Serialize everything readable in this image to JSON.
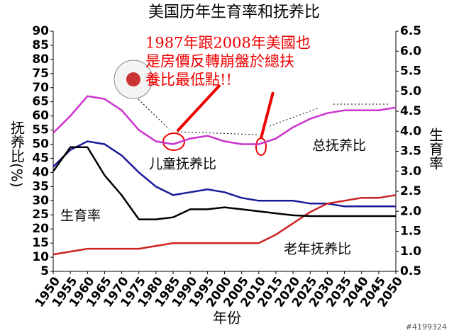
{
  "chart_data": {
    "type": "line",
    "title": "美国历年生育率和抚养比",
    "x_label": "年份",
    "y_label": "抚养比(%)",
    "y2_label": "生育率",
    "annotation": [
      "1987年跟2008年美國也",
      "是房價反轉崩盤於總扶",
      "養比最低點!!"
    ],
    "watermark": "#4199324",
    "x": [
      1950,
      1955,
      1960,
      1965,
      1970,
      1975,
      1980,
      1985,
      1990,
      1995,
      2000,
      2005,
      2010,
      2015,
      2020,
      2025,
      2030,
      2035,
      2040,
      2045,
      2050
    ],
    "xlim": [
      1950,
      2050
    ],
    "xticks": [
      1950,
      1955,
      1960,
      1965,
      1970,
      1975,
      1980,
      1985,
      1990,
      1995,
      2000,
      2005,
      2010,
      2015,
      2020,
      2025,
      2030,
      2035,
      2040,
      2045,
      2050
    ],
    "ylim": [
      5,
      90
    ],
    "yticks": [
      5,
      10,
      15,
      20,
      25,
      30,
      35,
      40,
      45,
      50,
      55,
      60,
      65,
      70,
      75,
      80,
      85,
      90
    ],
    "y2lim": [
      0.5,
      6.5
    ],
    "y2ticks": [
      0.5,
      {
        "value": 1,
        "label": "1.0"
      },
      1.5,
      {
        "value": 2,
        "label": "2.0"
      },
      2.5,
      {
        "value": 3,
        "label": "3.0"
      },
      3.5,
      {
        "value": 4,
        "label": "4.0"
      },
      4.5,
      {
        "value": 5,
        "label": "5.0"
      },
      5.5,
      {
        "value": 6,
        "label": "6.0"
      },
      6.5
    ],
    "series": [
      {
        "name": "总抚养比",
        "color": "#cc33cc",
        "values": [
          54,
          60,
          67,
          66,
          62,
          55,
          51,
          50,
          52,
          53,
          51,
          50,
          50,
          52,
          56,
          59,
          61,
          62,
          62,
          62,
          63
        ]
      },
      {
        "name": "儿童抚养比",
        "color": "#1a1a99",
        "values": [
          42,
          48,
          51,
          50,
          46,
          40,
          35,
          32,
          33,
          34,
          33,
          31,
          30,
          30,
          30,
          29,
          29,
          28,
          28,
          28,
          28
        ]
      },
      {
        "name": "老年抚养比",
        "color": "#cc2222",
        "values": [
          11,
          12,
          13,
          13,
          13,
          13,
          14,
          15,
          15,
          15,
          15,
          15,
          15,
          18,
          22,
          26,
          29,
          30,
          31,
          31,
          32
        ]
      },
      {
        "name": "生育率",
        "color": "#000000",
        "axis": "y2",
        "values": [
          3.0,
          3.6,
          3.6,
          2.9,
          2.4,
          1.8,
          1.8,
          1.85,
          2.05,
          2.05,
          2.1,
          2.05,
          2.0,
          1.95,
          1.9,
          1.88,
          1.88,
          1.88,
          1.88,
          1.88,
          1.88
        ]
      }
    ]
  }
}
